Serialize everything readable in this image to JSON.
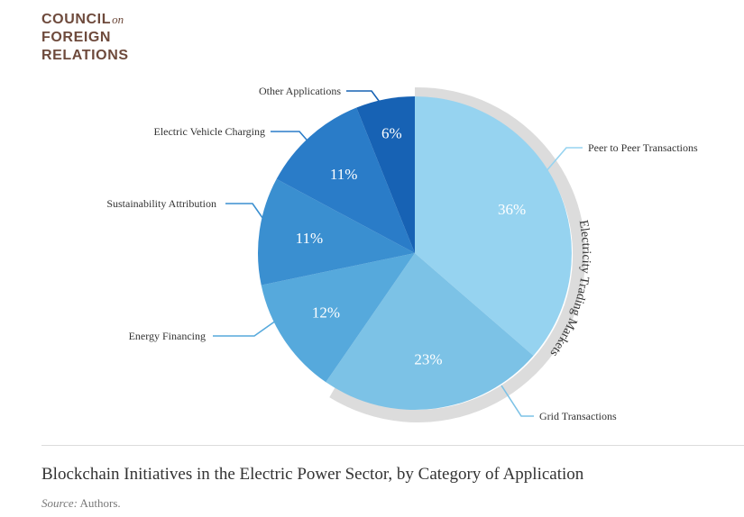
{
  "logo": {
    "line1": "COUNCIL",
    "on": "on",
    "line2": "FOREIGN",
    "line3": "RELATIONS"
  },
  "caption": {
    "title": "Blockchain Initiatives in the Electric Power Sector, by Category of Application",
    "source_label": "Source:",
    "source_text": " Authors."
  },
  "chart_data": {
    "type": "pie",
    "title": "Blockchain Initiatives in the Electric Power Sector, by Category of Application",
    "slices": [
      {
        "label": "Peer to Peer Transactions",
        "value": 36,
        "display": "36%",
        "color": "#96d3f0"
      },
      {
        "label": "Grid Transactions",
        "value": 23,
        "display": "23%",
        "color": "#7cc2e6"
      },
      {
        "label": "Energy Financing",
        "value": 12,
        "display": "12%",
        "color": "#56a9dc"
      },
      {
        "label": "Sustainability Attribution",
        "value": 11,
        "display": "11%",
        "color": "#3a8fd0"
      },
      {
        "label": "Electric Vehicle Charging",
        "value": 11,
        "display": "11%",
        "color": "#2a7cc8"
      },
      {
        "label": "Other Applications",
        "value": 6,
        "display": "6%",
        "color": "#1762b4"
      }
    ],
    "group_annotation": {
      "label": "Electricity Trading Markets",
      "covers": [
        "Peer to Peer Transactions",
        "Grid Transactions"
      ]
    }
  }
}
